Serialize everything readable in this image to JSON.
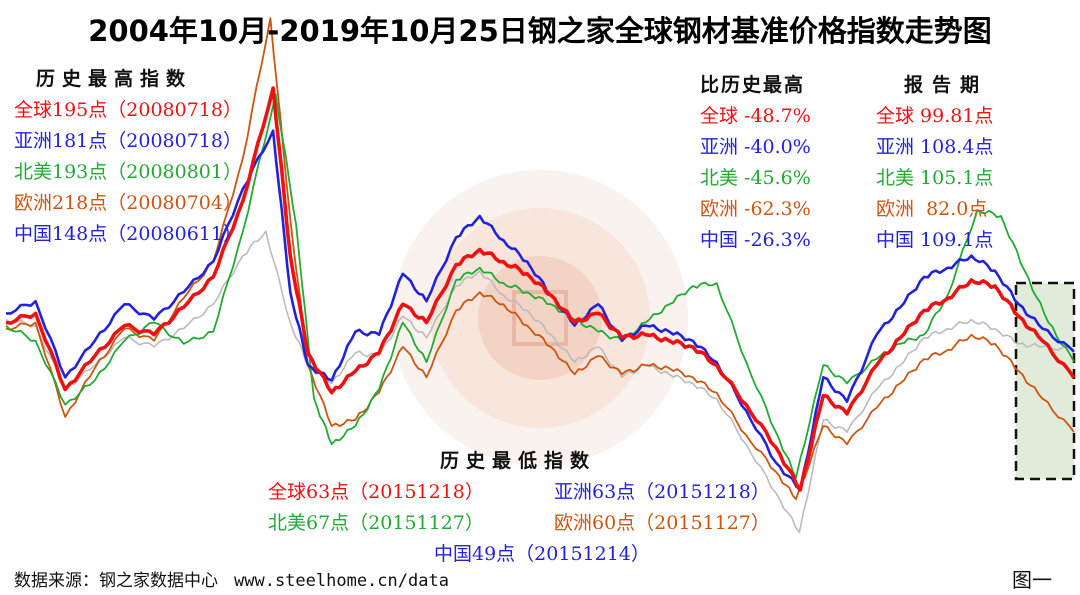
{
  "chart_data": {
    "type": "line",
    "title": "2004年10月-2019年10月25日钢之家全球钢材基准价格指数走势图",
    "x_range": [
      "2004-10",
      "2019-10-25"
    ],
    "grid": false,
    "series": [
      {
        "name": "全球",
        "color": "#ee1111",
        "points": [
          [
            "2004-10",
            118
          ],
          [
            "2005-03",
            121
          ],
          [
            "2005-08",
            96
          ],
          [
            "2006-01",
            107
          ],
          [
            "2006-06",
            117
          ],
          [
            "2006-11",
            114
          ],
          [
            "2007-04",
            123
          ],
          [
            "2007-09",
            133
          ],
          [
            "2008-02",
            158
          ],
          [
            "2008-07-18",
            195
          ],
          [
            "2008-10",
            140
          ],
          [
            "2009-01",
            108
          ],
          [
            "2009-05",
            95
          ],
          [
            "2009-09",
            102
          ],
          [
            "2010-01",
            108
          ],
          [
            "2010-05",
            124
          ],
          [
            "2010-09",
            118
          ],
          [
            "2011-02",
            137
          ],
          [
            "2011-06",
            142
          ],
          [
            "2011-10",
            138
          ],
          [
            "2012-02",
            134
          ],
          [
            "2012-06",
            127
          ],
          [
            "2012-10",
            118
          ],
          [
            "2013-02",
            121
          ],
          [
            "2013-06",
            113
          ],
          [
            "2013-10",
            114
          ],
          [
            "2014-02",
            112
          ],
          [
            "2014-06",
            110
          ],
          [
            "2014-10",
            104
          ],
          [
            "2015-03",
            91
          ],
          [
            "2015-08",
            77
          ],
          [
            "2015-12-18",
            63
          ],
          [
            "2016-04",
            94
          ],
          [
            "2016-08",
            88
          ],
          [
            "2017-01",
            104
          ],
          [
            "2017-05",
            113
          ],
          [
            "2017-09",
            122
          ],
          [
            "2018-01",
            126
          ],
          [
            "2018-05",
            132
          ],
          [
            "2018-09",
            130
          ],
          [
            "2019-01",
            120
          ],
          [
            "2019-05",
            112
          ],
          [
            "2019-10-25",
            99.81
          ]
        ]
      },
      {
        "name": "亚洲",
        "color": "#2222dd",
        "points": [
          [
            "2004-10",
            121
          ],
          [
            "2005-03",
            125
          ],
          [
            "2005-08",
            100
          ],
          [
            "2006-01",
            112
          ],
          [
            "2006-06",
            124
          ],
          [
            "2006-11",
            119
          ],
          [
            "2007-04",
            128
          ],
          [
            "2007-09",
            138
          ],
          [
            "2008-02",
            162
          ],
          [
            "2008-07-18",
            181
          ],
          [
            "2008-10",
            128
          ],
          [
            "2009-01",
            104
          ],
          [
            "2009-05",
            99
          ],
          [
            "2009-09",
            115
          ],
          [
            "2010-01",
            114
          ],
          [
            "2010-05",
            134
          ],
          [
            "2010-09",
            125
          ],
          [
            "2011-02",
            146
          ],
          [
            "2011-06",
            153
          ],
          [
            "2011-10",
            145
          ],
          [
            "2012-02",
            138
          ],
          [
            "2012-06",
            127
          ],
          [
            "2012-10",
            117
          ],
          [
            "2013-02",
            124
          ],
          [
            "2013-06",
            112
          ],
          [
            "2013-10",
            117
          ],
          [
            "2014-02",
            115
          ],
          [
            "2014-06",
            112
          ],
          [
            "2014-10",
            105
          ],
          [
            "2015-03",
            89
          ],
          [
            "2015-08",
            72
          ],
          [
            "2015-12-18",
            63
          ],
          [
            "2016-04",
            100
          ],
          [
            "2016-08",
            92
          ],
          [
            "2017-01",
            114
          ],
          [
            "2017-05",
            123
          ],
          [
            "2017-09",
            133
          ],
          [
            "2018-01",
            136
          ],
          [
            "2018-05",
            140
          ],
          [
            "2018-09",
            135
          ],
          [
            "2019-01",
            124
          ],
          [
            "2019-05",
            116
          ],
          [
            "2019-10-25",
            108.4
          ]
        ]
      },
      {
        "name": "北美",
        "color": "#22aa33",
        "points": [
          [
            "2004-10",
            117
          ],
          [
            "2005-03",
            112
          ],
          [
            "2005-08",
            91
          ],
          [
            "2006-01",
            99
          ],
          [
            "2006-06",
            112
          ],
          [
            "2006-11",
            118
          ],
          [
            "2007-04",
            111
          ],
          [
            "2007-09",
            115
          ],
          [
            "2008-02",
            148
          ],
          [
            "2008-08-01",
            193
          ],
          [
            "2008-11",
            150
          ],
          [
            "2009-02",
            93
          ],
          [
            "2009-05",
            78
          ],
          [
            "2009-09",
            84
          ],
          [
            "2010-01",
            96
          ],
          [
            "2010-05",
            118
          ],
          [
            "2010-09",
            105
          ],
          [
            "2011-02",
            132
          ],
          [
            "2011-06",
            136
          ],
          [
            "2011-10",
            131
          ],
          [
            "2012-02",
            128
          ],
          [
            "2012-06",
            124
          ],
          [
            "2012-10",
            119
          ],
          [
            "2013-02",
            115
          ],
          [
            "2013-06",
            112
          ],
          [
            "2013-10",
            118
          ],
          [
            "2014-02",
            124
          ],
          [
            "2014-06",
            130
          ],
          [
            "2014-10",
            131
          ],
          [
            "2015-03",
            105
          ],
          [
            "2015-08",
            82
          ],
          [
            "2015-11-27",
            67
          ],
          [
            "2016-04",
            104
          ],
          [
            "2016-08",
            98
          ],
          [
            "2017-01",
            106
          ],
          [
            "2017-05",
            111
          ],
          [
            "2017-09",
            114
          ],
          [
            "2018-01",
            127
          ],
          [
            "2018-06",
            155
          ],
          [
            "2018-10",
            153
          ],
          [
            "2019-02",
            135
          ],
          [
            "2019-06",
            118
          ],
          [
            "2019-10-25",
            105.1
          ]
        ]
      },
      {
        "name": "欧洲",
        "color": "#cc5511",
        "points": [
          [
            "2004-10",
            116
          ],
          [
            "2005-03",
            118
          ],
          [
            "2005-08",
            87
          ],
          [
            "2006-01",
            103
          ],
          [
            "2006-06",
            116
          ],
          [
            "2006-11",
            112
          ],
          [
            "2007-04",
            126
          ],
          [
            "2007-09",
            138
          ],
          [
            "2008-02",
            172
          ],
          [
            "2008-07-04",
            218
          ],
          [
            "2008-10",
            152
          ],
          [
            "2009-01",
            104
          ],
          [
            "2009-05",
            84
          ],
          [
            "2009-09",
            86
          ],
          [
            "2010-01",
            95
          ],
          [
            "2010-05",
            110
          ],
          [
            "2010-09",
            100
          ],
          [
            "2011-02",
            122
          ],
          [
            "2011-06",
            128
          ],
          [
            "2011-10",
            124
          ],
          [
            "2012-02",
            117
          ],
          [
            "2012-06",
            110
          ],
          [
            "2012-10",
            101
          ],
          [
            "2013-02",
            107
          ],
          [
            "2013-06",
            101
          ],
          [
            "2013-10",
            104
          ],
          [
            "2014-02",
            103
          ],
          [
            "2014-06",
            100
          ],
          [
            "2014-10",
            95
          ],
          [
            "2015-03",
            81
          ],
          [
            "2015-08",
            69
          ],
          [
            "2015-11-27",
            60
          ],
          [
            "2016-04",
            84
          ],
          [
            "2016-08",
            78
          ],
          [
            "2017-01",
            90
          ],
          [
            "2017-05",
            98
          ],
          [
            "2017-09",
            106
          ],
          [
            "2018-01",
            109
          ],
          [
            "2018-05",
            114
          ],
          [
            "2018-09",
            111
          ],
          [
            "2019-01",
            102
          ],
          [
            "2019-05",
            93
          ],
          [
            "2019-10-25",
            82.0
          ]
        ]
      },
      {
        "name": "中国",
        "color": "#bbbbbb",
        "points": [
          [
            "2004-10",
            119
          ],
          [
            "2005-03",
            117
          ],
          [
            "2005-08",
            96
          ],
          [
            "2006-01",
            104
          ],
          [
            "2006-06",
            113
          ],
          [
            "2006-11",
            110
          ],
          [
            "2007-04",
            116
          ],
          [
            "2007-09",
            124
          ],
          [
            "2008-02",
            140
          ],
          [
            "2008-06-11",
            148
          ],
          [
            "2008-10",
            118
          ],
          [
            "2009-01",
            104
          ],
          [
            "2009-05",
            98
          ],
          [
            "2009-09",
            108
          ],
          [
            "2010-01",
            107
          ],
          [
            "2010-05",
            120
          ],
          [
            "2010-09",
            113
          ],
          [
            "2011-02",
            130
          ],
          [
            "2011-06",
            135
          ],
          [
            "2011-10",
            127
          ],
          [
            "2012-02",
            122
          ],
          [
            "2012-06",
            114
          ],
          [
            "2012-10",
            105
          ],
          [
            "2013-02",
            110
          ],
          [
            "2013-06",
            100
          ],
          [
            "2013-10",
            104
          ],
          [
            "2014-02",
            101
          ],
          [
            "2014-06",
            98
          ],
          [
            "2014-10",
            93
          ],
          [
            "2015-03",
            78
          ],
          [
            "2015-08",
            62
          ],
          [
            "2015-12-14",
            49
          ],
          [
            "2016-04",
            86
          ],
          [
            "2016-08",
            82
          ],
          [
            "2017-01",
            96
          ],
          [
            "2017-05",
            104
          ],
          [
            "2017-09",
            113
          ],
          [
            "2018-01",
            116
          ],
          [
            "2018-05",
            119
          ],
          [
            "2018-09",
            116
          ],
          [
            "2019-01",
            111
          ],
          [
            "2019-05",
            110
          ],
          [
            "2019-10-25",
            109.1
          ]
        ]
      }
    ]
  },
  "high_panel": {
    "heading": "历史最高指数",
    "items": [
      {
        "text": "全球195点（20080718）",
        "color": "#ee1111"
      },
      {
        "text": "亚洲181点（20080718）",
        "color": "#2222dd"
      },
      {
        "text": "北美193点（20080801）",
        "color": "#22aa33"
      },
      {
        "text": "欧洲218点（20080704）",
        "color": "#cc5511"
      },
      {
        "text": "中国148点（20080611）",
        "color": "#2222dd"
      }
    ]
  },
  "vs_high_panel": {
    "heading": "比历史最高",
    "items": [
      {
        "text": "全球 -48.7%",
        "color": "#ee1111"
      },
      {
        "text": "亚洲 -40.0%",
        "color": "#2222dd"
      },
      {
        "text": "北美 -45.6%",
        "color": "#22aa33"
      },
      {
        "text": "欧洲 -62.3%",
        "color": "#cc5511"
      },
      {
        "text": "中国 -26.3%",
        "color": "#2222dd"
      }
    ]
  },
  "report_panel": {
    "heading": "报告期",
    "items": [
      {
        "text": "全球 99.81点",
        "color": "#ee1111"
      },
      {
        "text": "亚洲 108.4点",
        "color": "#2222dd"
      },
      {
        "text": "北美 105.1点",
        "color": "#22aa33"
      },
      {
        "text": "欧洲  82.0点",
        "color": "#cc5511"
      },
      {
        "text": "中国 109.1点",
        "color": "#2222dd"
      }
    ]
  },
  "low_panel": {
    "heading": "历史最低指数",
    "items": [
      {
        "text": "全球63点（20151218）",
        "color": "#ee1111"
      },
      {
        "text": "亚洲63点（20151218）",
        "color": "#2222dd"
      },
      {
        "text": "北美67点（20151127）",
        "color": "#22aa33"
      },
      {
        "text": "欧洲60点（20151127）",
        "color": "#cc5511"
      },
      {
        "text": "中国49点（20151214）",
        "color": "#2222dd"
      }
    ]
  },
  "footer": {
    "source": "数据来源：钢之家数据中心",
    "url": "www.steelhome.cn/data",
    "figure_label": "图一"
  }
}
